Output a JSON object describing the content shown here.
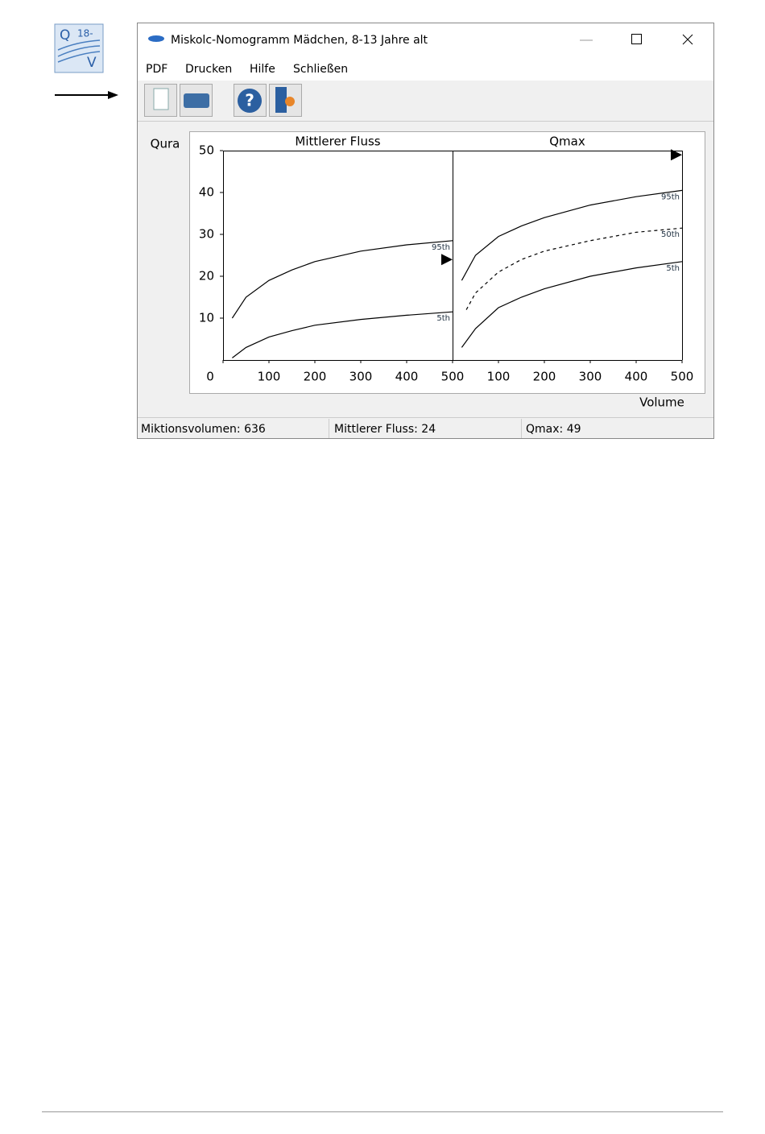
{
  "icon": {
    "top": "Q",
    "sup": "18-",
    "bottom": "V"
  },
  "window": {
    "title": "Miskolc-Nomogramm Mädchen, 8-13 Jahre alt",
    "menu": [
      "PDF",
      "Drucken",
      "Hilfe",
      "Schließen"
    ],
    "status": [
      "Miktionsvolumen: 636",
      "Mittlerer Fluss: 24",
      "Qmax: 49"
    ]
  },
  "chart_data": [
    {
      "type": "line",
      "title": "Mittlerer Fluss",
      "y_label": "Qura",
      "xlim": [
        0,
        500
      ],
      "ylim": [
        0,
        50
      ],
      "xticks": [
        0,
        100,
        200,
        300,
        400,
        500
      ],
      "yticks": [
        10,
        20,
        30,
        40,
        50
      ],
      "marker": 24,
      "series": [
        {
          "name": "95th",
          "color": "#000000",
          "x": [
            20,
            50,
            100,
            150,
            200,
            300,
            400,
            500
          ],
          "values": [
            10,
            15,
            19,
            21.5,
            23.5,
            26,
            27.5,
            28.5
          ]
        },
        {
          "name": "5th",
          "color": "#000000",
          "x": [
            20,
            50,
            100,
            150,
            200,
            300,
            400,
            500
          ],
          "values": [
            0.5,
            3,
            5.5,
            7,
            8.3,
            9.7,
            10.7,
            11.5
          ]
        }
      ]
    },
    {
      "type": "line",
      "title": "Qmax",
      "x_label": "Volume",
      "xlim": [
        0,
        500
      ],
      "ylim": [
        0,
        50
      ],
      "xticks": [
        100,
        200,
        300,
        400,
        500
      ],
      "marker": 49,
      "series": [
        {
          "name": "95th",
          "color": "#000000",
          "x": [
            20,
            50,
            100,
            150,
            200,
            300,
            400,
            500
          ],
          "values": [
            19,
            25,
            29.5,
            32,
            34,
            37,
            39,
            40.5
          ]
        },
        {
          "name": "50th",
          "color": "#000000",
          "dashed": true,
          "x": [
            30,
            50,
            100,
            150,
            200,
            300,
            400,
            500
          ],
          "values": [
            12,
            16,
            21,
            24,
            26,
            28.5,
            30.5,
            31.5
          ]
        },
        {
          "name": "5th",
          "color": "#000000",
          "x": [
            20,
            50,
            100,
            150,
            200,
            300,
            400,
            500
          ],
          "values": [
            3,
            7.5,
            12.5,
            15,
            17,
            20,
            22,
            23.5
          ]
        }
      ]
    }
  ]
}
